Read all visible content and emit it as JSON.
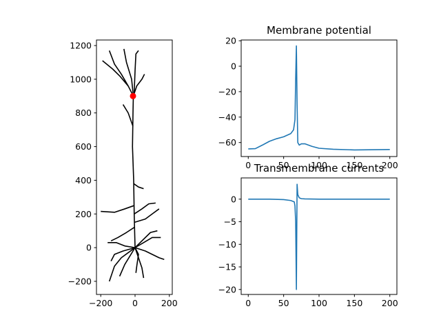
{
  "chart_data": [
    {
      "type": "line",
      "xlim": [
        -225,
        217
      ],
      "ylim": [
        -278,
        1233
      ],
      "xticks": [
        {
          "value": -200,
          "label": "−200"
        },
        0,
        200
      ],
      "yticks": [
        {
          "value": -200,
          "label": "−200"
        },
        0,
        200,
        400,
        600,
        800,
        1000,
        1200
      ],
      "series": [
        {
          "color": "#000000",
          "x": [
            0,
            -5,
            -8,
            -15,
            -12,
            -10
          ],
          "values": [
            0,
            200,
            400,
            600,
            800,
            900
          ]
        },
        {
          "color": "#000000",
          "x": [
            -10,
            -40,
            -80,
            -120,
            -150
          ],
          "values": [
            900,
            960,
            1030,
            1090,
            1170
          ]
        },
        {
          "color": "#000000",
          "x": [
            -40,
            -90,
            -130,
            -190
          ],
          "values": [
            960,
            1020,
            1060,
            1110
          ]
        },
        {
          "color": "#000000",
          "x": [
            -10,
            -20,
            -50,
            -65
          ],
          "values": [
            900,
            1000,
            1100,
            1180
          ]
        },
        {
          "color": "#000000",
          "x": [
            -10,
            10,
            40,
            55
          ],
          "values": [
            900,
            960,
            1000,
            1030
          ]
        },
        {
          "color": "#000000",
          "x": [
            -5,
            0,
            5,
            20
          ],
          "values": [
            920,
            1050,
            1150,
            1170
          ]
        },
        {
          "color": "#000000",
          "x": [
            -12,
            -40,
            -70
          ],
          "values": [
            720,
            800,
            850
          ]
        },
        {
          "color": "#000000",
          "x": [
            -8,
            20,
            50
          ],
          "values": [
            380,
            360,
            350
          ]
        },
        {
          "color": "#000000",
          "x": [
            -5,
            -60,
            -120,
            -200
          ],
          "values": [
            250,
            230,
            210,
            215
          ]
        },
        {
          "color": "#000000",
          "x": [
            -5,
            40,
            80,
            120
          ],
          "values": [
            200,
            230,
            260,
            265
          ]
        },
        {
          "color": "#000000",
          "x": [
            -5,
            60,
            100,
            140
          ],
          "values": [
            150,
            170,
            200,
            230
          ]
        },
        {
          "color": "#000000",
          "x": [
            -5,
            -50,
            -100,
            -140
          ],
          "values": [
            120,
            90,
            60,
            40
          ]
        },
        {
          "color": "#000000",
          "x": [
            0,
            -40,
            -80,
            -120,
            -150
          ],
          "values": [
            0,
            -30,
            -60,
            -110,
            -200
          ]
        },
        {
          "color": "#000000",
          "x": [
            0,
            -30,
            -60,
            -90
          ],
          "values": [
            0,
            -50,
            -100,
            -170
          ]
        },
        {
          "color": "#000000",
          "x": [
            0,
            20,
            40,
            50
          ],
          "values": [
            0,
            -60,
            -120,
            -180
          ]
        },
        {
          "color": "#000000",
          "x": [
            0,
            60,
            100,
            140,
            170
          ],
          "values": [
            0,
            -20,
            -40,
            -60,
            -70
          ]
        },
        {
          "color": "#000000",
          "x": [
            0,
            50,
            100,
            150
          ],
          "values": [
            0,
            30,
            60,
            60
          ]
        },
        {
          "color": "#000000",
          "x": [
            0,
            -60,
            -110,
            -160
          ],
          "values": [
            0,
            10,
            30,
            30
          ]
        },
        {
          "color": "#000000",
          "x": [
            0,
            -70,
            -120,
            -140
          ],
          "values": [
            0,
            -20,
            -40,
            -80
          ]
        },
        {
          "color": "#000000",
          "x": [
            0,
            90,
            130
          ],
          "values": [
            0,
            90,
            100
          ]
        },
        {
          "color": "#000000",
          "x": [
            0,
            20,
            10,
            5
          ],
          "values": [
            0,
            -40,
            -110,
            -150
          ]
        },
        {
          "type": "scatter",
          "color": "#ff0000",
          "x": [
            -12
          ],
          "values": [
            900
          ]
        }
      ]
    },
    {
      "type": "line",
      "title": "Membrane potential",
      "xlim": [
        -10,
        210
      ],
      "ylim": [
        -71,
        20.6
      ],
      "xticks": [
        0,
        50,
        100,
        150,
        200
      ],
      "yticks": [
        {
          "value": -60,
          "label": "−60"
        },
        {
          "value": -40,
          "label": "−40"
        },
        {
          "value": -20,
          "label": "−20"
        },
        0,
        20
      ],
      "series": [
        {
          "color": "#1f77b4",
          "x": [
            0,
            10,
            20,
            30,
            40,
            50,
            60,
            64,
            66,
            67,
            68,
            69,
            70,
            72,
            75,
            80,
            90,
            100,
            120,
            150,
            200
          ],
          "values": [
            -65,
            -64.8,
            -62,
            -59,
            -57,
            -55.5,
            -53,
            -50,
            -42,
            -10,
            16,
            -30,
            -60,
            -62,
            -61,
            -61,
            -63,
            -64.5,
            -65.3,
            -65.8,
            -65.5
          ]
        }
      ]
    },
    {
      "type": "line",
      "title": "Transmembrane currents",
      "xlim": [
        -10,
        210
      ],
      "ylim": [
        -21.1,
        4.7
      ],
      "xticks": [
        0,
        50,
        100,
        150,
        200
      ],
      "yticks": [
        {
          "value": -20,
          "label": "−20"
        },
        {
          "value": -15,
          "label": "−15"
        },
        {
          "value": -10,
          "label": "−10"
        },
        {
          "value": -5,
          "label": "−5"
        },
        0
      ],
      "series": [
        {
          "color": "#1f77b4",
          "x": [
            0,
            30,
            50,
            60,
            65,
            66,
            67,
            68,
            69,
            70,
            72,
            75,
            80,
            100,
            150,
            200
          ],
          "values": [
            0,
            0,
            -0.1,
            -0.3,
            -0.6,
            -1.5,
            -5,
            -20,
            3.3,
            1,
            0.3,
            0.1,
            0.05,
            0,
            0,
            0
          ]
        }
      ]
    }
  ]
}
